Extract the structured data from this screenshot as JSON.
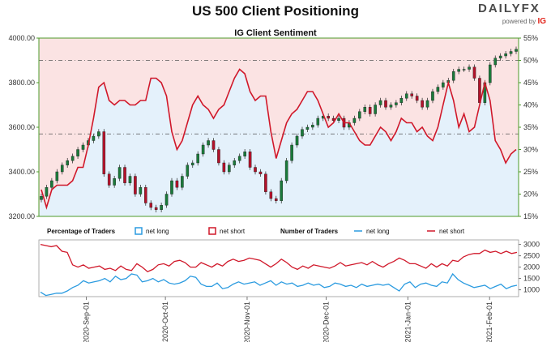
{
  "title": "US 500 Client Positioning",
  "brand": {
    "name": "DAILYFX",
    "powered": "powered by",
    "ig": "IG"
  },
  "colors": {
    "long": "#2b9be0",
    "short": "#d0182a",
    "up": "#1a7a3a",
    "down": "#b3122a",
    "axis_green": "#4c9a2a",
    "bg_long": "#e4f1fb",
    "bg_short": "#fbe3e3"
  },
  "chart_data": [
    {
      "type": "candlestick+line",
      "title": "IG Client Sentiment",
      "x_ticks": [
        "2020-Sep-01",
        "2020-Oct-01",
        "2020-Nov-01",
        "2020-Dec-01",
        "2021-Jan-01",
        "2021-Feb-01"
      ],
      "y_left": {
        "ticks": [
          "3200.00",
          "3400.00",
          "3600.00",
          "3800.00",
          "4000.00"
        ],
        "range": [
          3200,
          4000
        ]
      },
      "y_right": {
        "ticks": [
          "15%",
          "20%",
          "25%",
          "30%",
          "35%",
          "40%",
          "45%",
          "50%",
          "55%"
        ],
        "range": [
          15,
          55
        ]
      },
      "reference_lines_pct": [
        50,
        33.5
      ],
      "price_close": [
        3290,
        3330,
        3360,
        3400,
        3430,
        3450,
        3470,
        3500,
        3520,
        3540,
        3560,
        3580,
        3390,
        3340,
        3370,
        3420,
        3350,
        3380,
        3300,
        3330,
        3260,
        3240,
        3230,
        3250,
        3300,
        3360,
        3330,
        3380,
        3430,
        3440,
        3480,
        3520,
        3540,
        3500,
        3440,
        3400,
        3430,
        3450,
        3470,
        3490,
        3420,
        3400,
        3390,
        3310,
        3280,
        3270,
        3360,
        3450,
        3520,
        3560,
        3590,
        3600,
        3610,
        3640,
        3650,
        3640,
        3630,
        3640,
        3600,
        3620,
        3640,
        3670,
        3690,
        3660,
        3700,
        3720,
        3690,
        3700,
        3710,
        3730,
        3750,
        3740,
        3720,
        3690,
        3720,
        3760,
        3780,
        3800,
        3810,
        3850,
        3860,
        3860,
        3870,
        3820,
        3710,
        3800,
        3880,
        3910,
        3920,
        3930,
        3940,
        3950
      ],
      "net_long_pct": [
        21,
        17,
        21,
        22,
        22,
        22,
        23,
        26,
        26,
        31,
        37,
        44,
        45,
        41,
        40,
        41,
        41,
        40,
        40,
        41,
        41,
        46,
        46,
        45,
        42,
        34,
        30,
        32,
        36,
        40,
        42,
        40,
        39,
        37,
        39,
        40,
        43,
        46,
        48,
        47,
        43,
        41,
        42,
        42,
        34,
        28,
        32,
        36,
        38,
        39,
        41,
        43,
        43,
        41,
        38,
        35,
        36,
        38,
        36,
        36,
        34,
        32,
        31,
        31,
        33,
        35,
        34,
        32,
        34,
        37,
        36,
        36,
        34,
        35,
        33,
        32,
        35,
        40,
        45,
        41,
        35,
        38,
        34,
        35,
        40,
        45,
        41,
        32,
        30,
        27,
        29,
        30
      ]
    },
    {
      "type": "line",
      "legend_pct": {
        "heading": "Percentage of Traders",
        "long": "net long",
        "short": "net short"
      },
      "legend_num": {
        "heading": "Number of Traders",
        "long": "net long",
        "short": "net short"
      },
      "y_ticks": [
        "1000",
        "1500",
        "2000",
        "2500",
        "3000"
      ],
      "y_range": [
        700,
        3200
      ],
      "series": [
        {
          "name": "net short",
          "values": [
            3000,
            2950,
            2900,
            2950,
            2700,
            2650,
            2100,
            2000,
            2100,
            1950,
            2000,
            2050,
            1900,
            1950,
            1850,
            2050,
            1900,
            1850,
            2150,
            2000,
            1800,
            1900,
            2100,
            2150,
            2050,
            2250,
            2300,
            2200,
            2000,
            2000,
            2200,
            2100,
            2000,
            2150,
            2050,
            2250,
            2350,
            2250,
            2300,
            2400,
            2350,
            2300,
            2150,
            2000,
            2150,
            2350,
            2200,
            2000,
            1900,
            2050,
            1950,
            2100,
            2050,
            2000,
            1950,
            2050,
            2200,
            2050,
            2100,
            2150,
            2200,
            2100,
            2250,
            2100,
            2000,
            2150,
            2250,
            2400,
            2300,
            2150,
            2150,
            2050,
            1950,
            2150,
            2000,
            2150,
            2050,
            2300,
            2250,
            2450,
            2550,
            2600,
            2600,
            2750,
            2650,
            2700,
            2600,
            2700,
            2600,
            2650
          ]
        },
        {
          "name": "net long",
          "values": [
            900,
            750,
            800,
            850,
            850,
            950,
            1100,
            1200,
            1400,
            1300,
            1350,
            1400,
            1500,
            1350,
            1600,
            1450,
            1500,
            1700,
            1650,
            1350,
            1400,
            1500,
            1350,
            1450,
            1300,
            1250,
            1300,
            1400,
            1600,
            1550,
            1250,
            1150,
            1150,
            1300,
            1050,
            1100,
            1250,
            1350,
            1250,
            1300,
            1350,
            1200,
            1300,
            1400,
            1200,
            1350,
            1250,
            1300,
            1150,
            1200,
            1300,
            1200,
            1250,
            1100,
            1150,
            1300,
            1250,
            1150,
            1200,
            1100,
            1250,
            1150,
            1200,
            1250,
            1200,
            1250,
            1100,
            950,
            1250,
            1350,
            1100,
            1250,
            1300,
            1200,
            1150,
            1350,
            1300,
            1700,
            1450,
            1300,
            1200,
            1100,
            1150,
            1200,
            1050,
            1150,
            1250,
            1050,
            1150,
            1200
          ]
        }
      ]
    }
  ]
}
